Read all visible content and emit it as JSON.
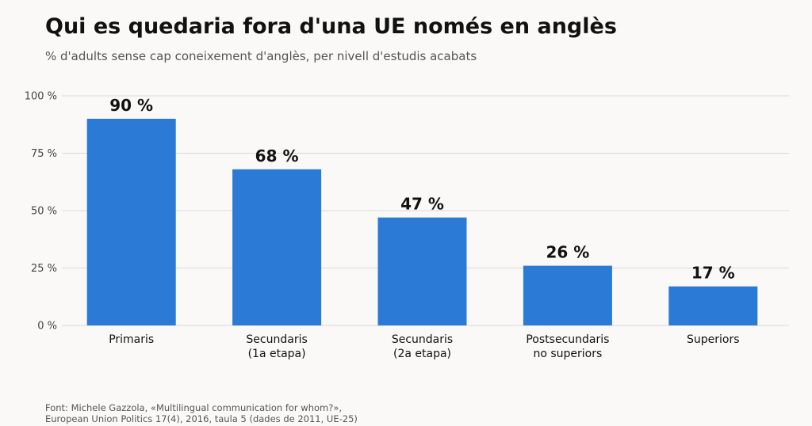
{
  "title": "Qui es quedaria fora d'una UE només en anglès",
  "subtitle": "% d'adults sense cap coneixement d'anglès, per nivell d'estudis acabats",
  "source": {
    "line1": "Font: Michele Gazzola, «Multilingual communication for whom?»,",
    "line2": "European Union Politics 17(4), 2016, taula 5 (dades de 2011, UE-25)"
  },
  "colors": {
    "bar": "#2a7ad6",
    "grid": "#d9d9d9",
    "text": "#111111",
    "tick": "#444444"
  },
  "chart_data": {
    "type": "bar",
    "categories": [
      [
        "Primaris"
      ],
      [
        "Secundaris",
        "(1a etapa)"
      ],
      [
        "Secundaris",
        "(2a etapa)"
      ],
      [
        "Postsecundaris",
        "no superiors"
      ],
      [
        "Superiors"
      ]
    ],
    "values": [
      90,
      68,
      47,
      26,
      17
    ],
    "data_labels": [
      "90 %",
      "68 %",
      "47 %",
      "26 %",
      "17 %"
    ],
    "yticks": [
      0,
      25,
      50,
      75,
      100
    ],
    "ytick_labels": [
      "0 %",
      "25 %",
      "50 %",
      "75 %",
      "100 %"
    ],
    "ylim": [
      0,
      100
    ],
    "grid": true
  }
}
